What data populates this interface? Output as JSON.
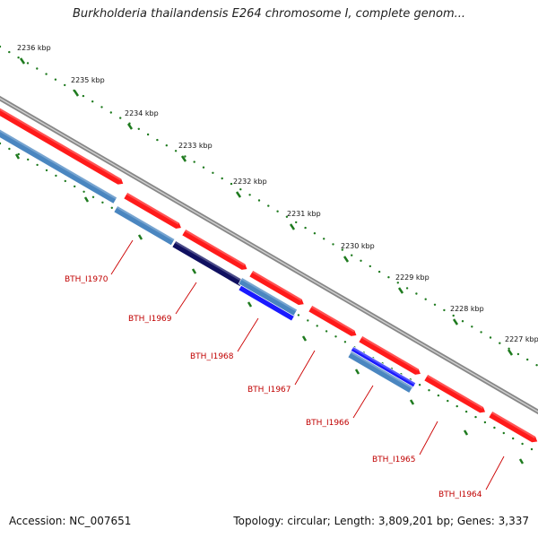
{
  "title": "Burkholderia thailandensis E264 chromosome I, complete genom...",
  "footer": {
    "accession": "Accession: NC_007651",
    "summary": "Topology: circular; Length: 3,809,201 bp; Genes: 3,337"
  },
  "colors": {
    "backbone": "#888888",
    "forward_gene": "#ff1a1a",
    "reverse_gene_light": "#4a86c0",
    "reverse_gene_dark": "#101060",
    "reverse_gene_blue": "#1a1aff",
    "tick_mark": "#1e7a1e",
    "label": "#c00000"
  },
  "kbp_labels": [
    "2236 kbp",
    "2235 kbp",
    "2234 kbp",
    "2233 kbp",
    "2232 kbp",
    "2231 kbp",
    "2230 kbp",
    "2229 kbp",
    "2228 kbp",
    "2227 kbp"
  ],
  "gene_labels": [
    "BTH_I1970",
    "BTH_I1969",
    "BTH_I1968",
    "BTH_I1967",
    "BTH_I1966",
    "BTH_I1965",
    "BTH_I1964"
  ]
}
